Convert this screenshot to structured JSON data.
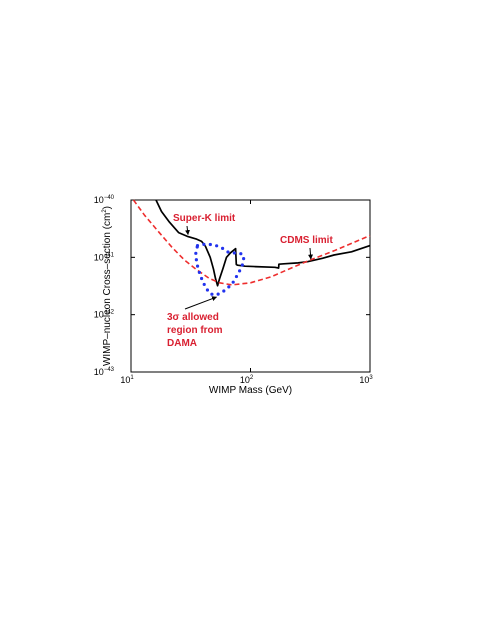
{
  "chart_data": {
    "type": "line",
    "xlabel": "WIMP Mass (GeV)",
    "ylabel_main": "WIMP–nucleon  Cross–section (cm",
    "ylabel_sup": "2",
    "ylabel_close": ")",
    "xscale": "log",
    "yscale": "log",
    "xlim": [
      10,
      1000
    ],
    "ylim": [
      1e-43,
      1e-40
    ],
    "grid": false,
    "x_ticks": [
      {
        "value": 10,
        "base": "10",
        "exp": "1"
      },
      {
        "value": 100,
        "base": "10",
        "exp": "2"
      },
      {
        "value": 1000,
        "base": "10",
        "exp": "3"
      }
    ],
    "y_ticks": [
      {
        "value": 1e-40,
        "base": "10",
        "exp": "−40"
      },
      {
        "value": 1e-41,
        "base": "10",
        "exp": "−41"
      },
      {
        "value": 1e-42,
        "base": "10",
        "exp": "−42"
      },
      {
        "value": 1e-43,
        "base": "10",
        "exp": "−43"
      }
    ],
    "series": [
      {
        "name": "Super-K limit",
        "color": "#000000",
        "style": "solid",
        "points": [
          [
            16.2,
            1e-40
          ],
          [
            18,
            6.3e-41
          ],
          [
            21,
            4.1e-41
          ],
          [
            25,
            2.7e-41
          ],
          [
            30,
            2.3e-41
          ],
          [
            35,
            2.1e-41
          ],
          [
            39,
            1.9e-41
          ],
          [
            42,
            1.55e-41
          ],
          [
            46,
            1e-41
          ],
          [
            49,
            6.2e-42
          ],
          [
            51,
            4.2e-42
          ],
          [
            53,
            3.2e-42
          ],
          [
            55,
            4.2e-42
          ],
          [
            59,
            6.5e-42
          ],
          [
            63,
            1e-41
          ],
          [
            68,
            1.2e-41
          ],
          [
            75,
            1.42e-41
          ],
          [
            76,
            7.5e-42
          ],
          [
            78,
            7.3e-42
          ],
          [
            90,
            7e-42
          ],
          [
            110,
            6.9e-42
          ],
          [
            160,
            6.7e-42
          ],
          [
            172,
            6.5e-42
          ],
          [
            173,
            7.6e-42
          ],
          [
            190,
            7.7e-42
          ],
          [
            250,
            8e-42
          ],
          [
            300,
            8.4e-42
          ],
          [
            400,
            9.6e-42
          ],
          [
            500,
            1.1e-41
          ],
          [
            700,
            1.25e-41
          ],
          [
            1000,
            1.6e-41
          ]
        ]
      },
      {
        "name": "CDMS limit",
        "color": "#ee2e2e",
        "style": "dashed",
        "points": [
          [
            10.5,
            1e-40
          ],
          [
            13,
            5.4e-41
          ],
          [
            17,
            2.8e-41
          ],
          [
            22,
            1.5e-41
          ],
          [
            28,
            9e-42
          ],
          [
            35,
            6.2e-42
          ],
          [
            45,
            4.3e-42
          ],
          [
            55,
            3.6e-42
          ],
          [
            70,
            3.3e-42
          ],
          [
            100,
            3.6e-42
          ],
          [
            150,
            4.6e-42
          ],
          [
            200,
            6e-42
          ],
          [
            300,
            8.6e-42
          ],
          [
            500,
            1.3e-41
          ],
          [
            700,
            1.75e-41
          ],
          [
            1000,
            2.4e-41
          ]
        ]
      },
      {
        "name": "3σ allowed region from DAMA",
        "color": "#2233ee",
        "style": "dotted",
        "closed": true,
        "points": [
          [
            36,
            1.6e-41
          ],
          [
            42,
            1.7e-41
          ],
          [
            50,
            1.65e-41
          ],
          [
            58,
            1.45e-41
          ],
          [
            64,
            1.25e-41
          ],
          [
            70,
            1.2e-41
          ],
          [
            78,
            1.18e-41
          ],
          [
            85,
            1.15e-41
          ],
          [
            88,
            1e-41
          ],
          [
            85,
            7e-42
          ],
          [
            78,
            5e-42
          ],
          [
            70,
            3.4e-42
          ],
          [
            60,
            2.6e-42
          ],
          [
            52,
            2.2e-42
          ],
          [
            46,
            2.3e-42
          ],
          [
            42,
            3e-42
          ],
          [
            38,
            4.8e-42
          ],
          [
            35.5,
            7.8e-42
          ],
          [
            34.8,
            1.15e-41
          ]
        ]
      }
    ],
    "annotations": [
      {
        "id": "superk",
        "lines": [
          "Super-K limit"
        ],
        "color": "#d92031",
        "arrow_to": [
          30,
          2.3e-41
        ]
      },
      {
        "id": "cdms",
        "lines": [
          "CDMS limit"
        ],
        "color": "#d92031",
        "arrow_to": [
          320,
          8.6e-42
        ]
      },
      {
        "id": "dama",
        "lines": [
          "3σ allowed",
          "region from",
          "DAMA"
        ],
        "color": "#d92031",
        "arrow_to": [
          52,
          2.2e-42
        ]
      }
    ]
  }
}
